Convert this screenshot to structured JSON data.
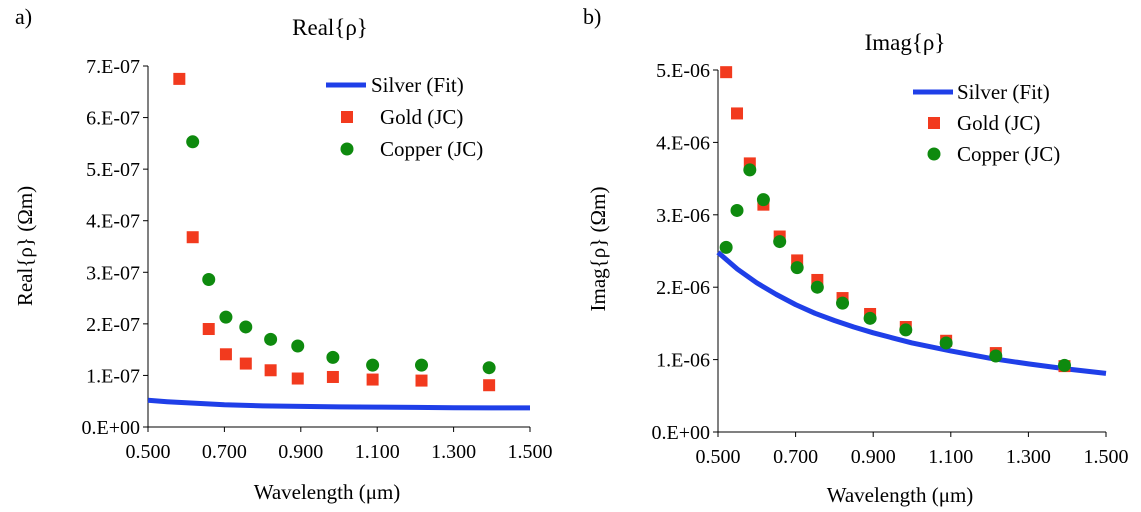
{
  "chart_data": [
    {
      "type": "scatter",
      "panel_label": "a)",
      "title": "Real{ρ}",
      "xlabel": "Wavelength (μm)",
      "ylabel": "Real{ρ} (Ωm)",
      "xlim": [
        0.5,
        1.5
      ],
      "ylim": [
        0,
        7e-07
      ],
      "x_ticks": [
        0.5,
        0.7,
        0.9,
        1.1,
        1.3,
        1.5
      ],
      "x_tick_labels": [
        "0.500",
        "0.700",
        "0.900",
        "1.100",
        "1.300",
        "1.500"
      ],
      "y_ticks": [
        0,
        1e-07,
        2e-07,
        3e-07,
        4e-07,
        5e-07,
        6e-07,
        7e-07
      ],
      "y_tick_labels": [
        "0.E+00",
        "1.E-07",
        "2.E-07",
        "3.E-07",
        "4.E-07",
        "5.E-07",
        "6.E-07",
        "7.E-07"
      ],
      "grid": false,
      "legend_position": "top-right",
      "series": [
        {
          "name": "Silver (Fit)",
          "style": "line",
          "color": "#1f3fe8",
          "x": [
            0.5,
            0.55,
            0.6,
            0.65,
            0.7,
            0.8,
            0.9,
            1.0,
            1.1,
            1.2,
            1.3,
            1.4,
            1.5
          ],
          "y": [
            5.2e-08,
            4.9e-08,
            4.7e-08,
            4.5e-08,
            4.3e-08,
            4.1e-08,
            4e-08,
            3.9e-08,
            3.85e-08,
            3.8e-08,
            3.75e-08,
            3.7e-08,
            3.7e-08
          ]
        },
        {
          "name": "Gold (JC)",
          "style": "square",
          "color": "#f23a1e",
          "x": [
            0.582,
            0.617,
            0.659,
            0.704,
            0.756,
            0.821,
            0.892,
            0.984,
            1.088,
            1.216,
            1.393
          ],
          "y": [
            6.75e-07,
            3.68e-07,
            1.9e-07,
            1.41e-07,
            1.23e-07,
            1.1e-07,
            9.4e-08,
            9.7e-08,
            9.2e-08,
            9e-08,
            8.1e-08
          ]
        },
        {
          "name": "Copper (JC)",
          "style": "circle",
          "color": "#0e8a0e",
          "x": [
            0.617,
            0.659,
            0.704,
            0.756,
            0.821,
            0.892,
            0.984,
            1.088,
            1.216,
            1.393
          ],
          "y": [
            5.53e-07,
            2.86e-07,
            2.13e-07,
            1.94e-07,
            1.7e-07,
            1.57e-07,
            1.35e-07,
            1.2e-07,
            1.2e-07,
            1.15e-07
          ]
        }
      ]
    },
    {
      "type": "scatter",
      "panel_label": "b)",
      "title": "Imag{ρ}",
      "xlabel": "Wavelength (μm)",
      "ylabel": "Imag{ρ} (Ωm)",
      "xlim": [
        0.5,
        1.5
      ],
      "ylim": [
        0,
        5e-06
      ],
      "x_ticks": [
        0.5,
        0.7,
        0.9,
        1.1,
        1.3,
        1.5
      ],
      "x_tick_labels": [
        "0.500",
        "0.700",
        "0.900",
        "1.100",
        "1.300",
        "1.500"
      ],
      "y_ticks": [
        0,
        1e-06,
        2e-06,
        3e-06,
        4e-06,
        5e-06
      ],
      "y_tick_labels": [
        "0.E+00",
        "1.E-06",
        "2.E-06",
        "3.E-06",
        "4.E-06",
        "5.E-06"
      ],
      "grid": false,
      "legend_position": "top-right",
      "series": [
        {
          "name": "Silver (Fit)",
          "style": "line",
          "color": "#1f3fe8",
          "x": [
            0.5,
            0.55,
            0.6,
            0.65,
            0.7,
            0.75,
            0.8,
            0.85,
            0.9,
            0.95,
            1.0,
            1.1,
            1.2,
            1.3,
            1.4,
            1.5
          ],
          "y": [
            2.48e-06,
            2.25e-06,
            2.06e-06,
            1.9e-06,
            1.76e-06,
            1.64e-06,
            1.54e-06,
            1.45e-06,
            1.37e-06,
            1.3e-06,
            1.23e-06,
            1.12e-06,
            1.02e-06,
            9.4e-07,
            8.7e-07,
            8.1e-07
          ]
        },
        {
          "name": "Gold (JC)",
          "style": "square",
          "color": "#f23a1e",
          "x": [
            0.521,
            0.549,
            0.582,
            0.617,
            0.659,
            0.704,
            0.756,
            0.821,
            0.892,
            0.984,
            1.088,
            1.216,
            1.393
          ],
          "y": [
            4.97e-06,
            4.4e-06,
            3.71e-06,
            3.14e-06,
            2.7e-06,
            2.37e-06,
            2.1e-06,
            1.85e-06,
            1.63e-06,
            1.45e-06,
            1.26e-06,
            1.09e-06,
            9.1e-07
          ]
        },
        {
          "name": "Copper (JC)",
          "style": "circle",
          "color": "#0e8a0e",
          "x": [
            0.521,
            0.549,
            0.582,
            0.617,
            0.659,
            0.704,
            0.756,
            0.821,
            0.892,
            0.984,
            1.088,
            1.216,
            1.393
          ],
          "y": [
            2.55e-06,
            3.06e-06,
            3.62e-06,
            3.21e-06,
            2.63e-06,
            2.27e-06,
            2e-06,
            1.78e-06,
            1.57e-06,
            1.41e-06,
            1.23e-06,
            1.05e-06,
            9.2e-07
          ]
        }
      ]
    }
  ]
}
